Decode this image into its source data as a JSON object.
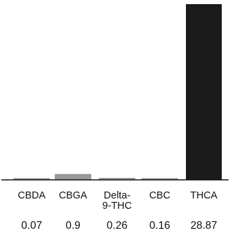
{
  "chart_data": {
    "type": "bar",
    "categories": [
      "CBDA",
      "CBGA",
      "Delta-9-THC",
      "CBC",
      "THCA"
    ],
    "category_lines": [
      [
        "CBDA"
      ],
      [
        "CBGA"
      ],
      [
        "Delta-",
        "9-THC"
      ],
      [
        "CBC"
      ],
      [
        "THCA"
      ]
    ],
    "values": [
      0.07,
      0.9,
      0.26,
      0.16,
      28.87
    ],
    "value_labels": [
      "0.07",
      "0.9",
      "0.26",
      "0.16",
      "28.87"
    ],
    "ylim": [
      0,
      28.87
    ],
    "grid": false,
    "colors": {
      "background": "#ffffff",
      "axis": "#111111",
      "bar_light": "#9a9a9a",
      "bar_dark": "#1a1a1a",
      "text": "#111111"
    }
  }
}
